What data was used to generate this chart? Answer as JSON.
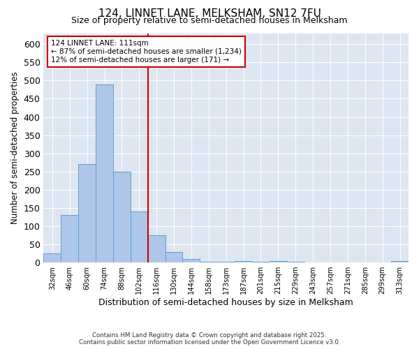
{
  "title": "124, LINNET LANE, MELKSHAM, SN12 7FU",
  "subtitle": "Size of property relative to semi-detached houses in Melksham",
  "xlabel": "Distribution of semi-detached houses by size in Melksham",
  "ylabel": "Number of semi-detached properties",
  "categories": [
    "32sqm",
    "46sqm",
    "60sqm",
    "74sqm",
    "88sqm",
    "102sqm",
    "116sqm",
    "130sqm",
    "144sqm",
    "158sqm",
    "173sqm",
    "187sqm",
    "201sqm",
    "215sqm",
    "229sqm",
    "243sqm",
    "257sqm",
    "271sqm",
    "285sqm",
    "299sqm",
    "313sqm"
  ],
  "values": [
    25,
    130,
    270,
    490,
    250,
    140,
    75,
    30,
    10,
    3,
    2,
    4,
    2,
    4,
    2,
    1,
    1,
    1,
    1,
    1,
    4
  ],
  "bar_color": "#aec6e8",
  "bar_edge_color": "#5a9fd4",
  "vline_x_index": 6,
  "vline_color": "#cc0000",
  "annotation_title": "124 LINNET LANE: 111sqm",
  "annotation_line1": "← 87% of semi-detached houses are smaller (1,234)",
  "annotation_line2": "12% of semi-detached houses are larger (171) →",
  "annotation_box_color": "#cc0000",
  "ylim": [
    0,
    630
  ],
  "yticks": [
    0,
    50,
    100,
    150,
    200,
    250,
    300,
    350,
    400,
    450,
    500,
    550,
    600
  ],
  "background_color": "#dde6f0",
  "footer_line1": "Contains HM Land Registry data © Crown copyright and database right 2025.",
  "footer_line2": "Contains public sector information licensed under the Open Government Licence v3.0.",
  "title_fontsize": 11,
  "subtitle_fontsize": 9
}
